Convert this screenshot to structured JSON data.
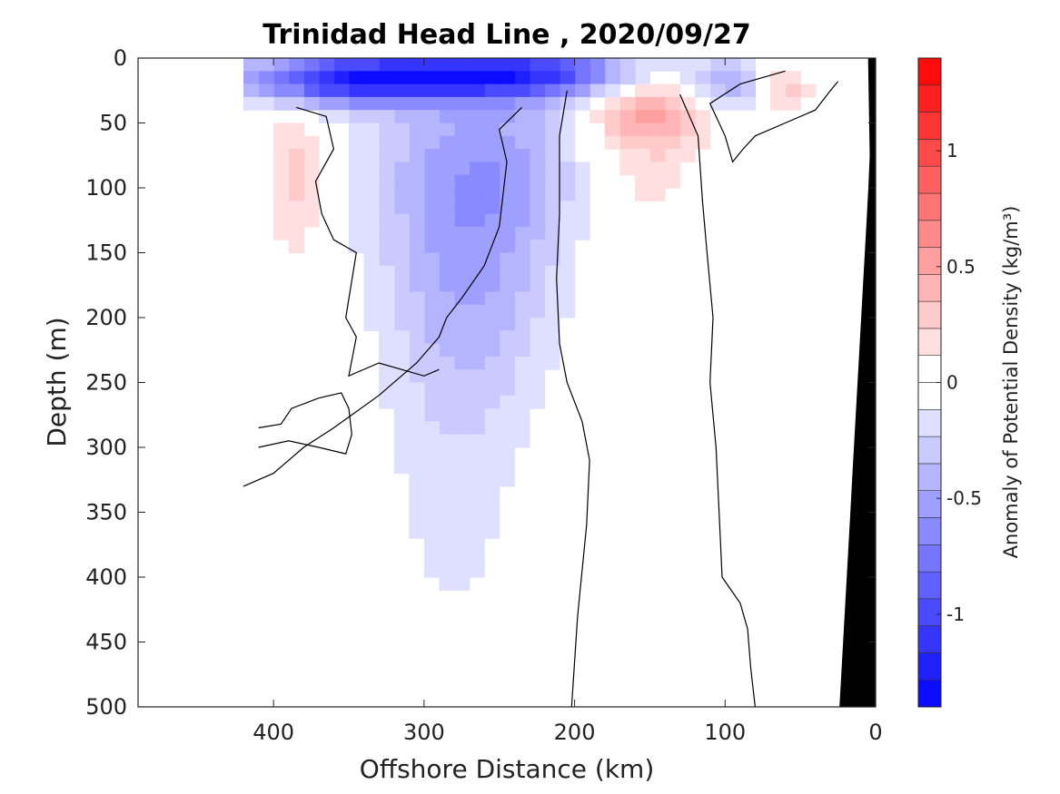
{
  "chart_data": {
    "type": "heatmap",
    "title": "Trinidad Head Line , 2020/09/27",
    "xlabel": "Offshore Distance (km)",
    "ylabel": "Depth (m)",
    "colorbar_label": "Anomaly of Potential Density (kg/m³)",
    "x_reversed": true,
    "y_reversed": true,
    "xlim": [
      0,
      490
    ],
    "ylim": [
      0,
      500
    ],
    "x_ticks": [
      400,
      300,
      200,
      100,
      0
    ],
    "y_ticks": [
      0,
      50,
      100,
      150,
      200,
      250,
      300,
      350,
      400,
      450,
      500
    ],
    "colorbar_range": [
      -1.4,
      1.4
    ],
    "colorbar_ticks": [
      -1,
      -0.5,
      0,
      0.5,
      1
    ],
    "colormap": {
      "negative": "#0000ff",
      "zero": "#ffffff",
      "positive": "#ff0000"
    },
    "bathymetry_color": "#000000",
    "blobs": [
      {
        "x": 250,
        "y": 12,
        "sx": 80,
        "sy": 14,
        "value": -1.05
      },
      {
        "x": 360,
        "y": 18,
        "sx": 45,
        "sy": 14,
        "value": -0.8
      },
      {
        "x": 260,
        "y": 80,
        "sx": 55,
        "sy": 55,
        "value": -0.45
      },
      {
        "x": 270,
        "y": 180,
        "sx": 40,
        "sy": 70,
        "value": -0.35
      },
      {
        "x": 280,
        "y": 330,
        "sx": 35,
        "sy": 110,
        "value": -0.15
      },
      {
        "x": 100,
        "y": 25,
        "sx": 20,
        "sy": 15,
        "value": -0.4
      },
      {
        "x": 40,
        "y": 180,
        "sx": 18,
        "sy": 100,
        "value": -0.12
      },
      {
        "x": 150,
        "y": 35,
        "sx": 30,
        "sy": 25,
        "value": 0.55
      },
      {
        "x": 160,
        "y": 100,
        "sx": 30,
        "sy": 45,
        "value": 0.18
      },
      {
        "x": 385,
        "y": 90,
        "sx": 14,
        "sy": 45,
        "value": 0.3
      },
      {
        "x": 60,
        "y": 25,
        "sx": 15,
        "sy": 15,
        "value": 0.35
      }
    ],
    "zero_contours": [
      [
        [
          385,
          38
        ],
        [
          365,
          45
        ],
        [
          360,
          70
        ],
        [
          372,
          95
        ],
        [
          368,
          120
        ],
        [
          360,
          140
        ],
        [
          345,
          150
        ],
        [
          352,
          200
        ],
        [
          345,
          215
        ],
        [
          350,
          245
        ],
        [
          330,
          235
        ],
        [
          300,
          245
        ],
        [
          290,
          240
        ]
      ],
      [
        [
          235,
          38
        ],
        [
          250,
          55
        ],
        [
          245,
          80
        ],
        [
          248,
          110
        ],
        [
          250,
          130
        ],
        [
          260,
          160
        ],
        [
          275,
          185
        ],
        [
          285,
          200
        ],
        [
          290,
          215
        ],
        [
          305,
          235
        ],
        [
          330,
          260
        ],
        [
          360,
          285
        ],
        [
          380,
          300
        ],
        [
          400,
          320
        ],
        [
          420,
          330
        ]
      ],
      [
        [
          205,
          25
        ],
        [
          210,
          60
        ],
        [
          210,
          120
        ],
        [
          212,
          170
        ],
        [
          210,
          220
        ],
        [
          205,
          250
        ],
        [
          195,
          280
        ],
        [
          190,
          310
        ],
        [
          192,
          360
        ],
        [
          198,
          430
        ],
        [
          202,
          500
        ]
      ],
      [
        [
          130,
          28
        ],
        [
          118,
          60
        ],
        [
          115,
          110
        ],
        [
          112,
          150
        ],
        [
          108,
          200
        ],
        [
          110,
          250
        ],
        [
          106,
          300
        ],
        [
          104,
          350
        ],
        [
          102,
          400
        ],
        [
          90,
          420
        ],
        [
          85,
          440
        ],
        [
          83,
          470
        ],
        [
          80,
          500
        ]
      ],
      [
        [
          60,
          10
        ],
        [
          90,
          20
        ],
        [
          110,
          35
        ],
        [
          100,
          60
        ],
        [
          95,
          80
        ],
        [
          88,
          70
        ],
        [
          80,
          60
        ],
        [
          60,
          50
        ],
        [
          40,
          40
        ],
        [
          30,
          25
        ],
        [
          25,
          18
        ]
      ],
      [
        [
          410,
          285
        ],
        [
          395,
          282
        ],
        [
          388,
          270
        ],
        [
          370,
          262
        ],
        [
          355,
          258
        ],
        [
          350,
          270
        ],
        [
          348,
          290
        ],
        [
          352,
          305
        ],
        [
          370,
          300
        ],
        [
          390,
          295
        ],
        [
          410,
          300
        ]
      ]
    ]
  }
}
